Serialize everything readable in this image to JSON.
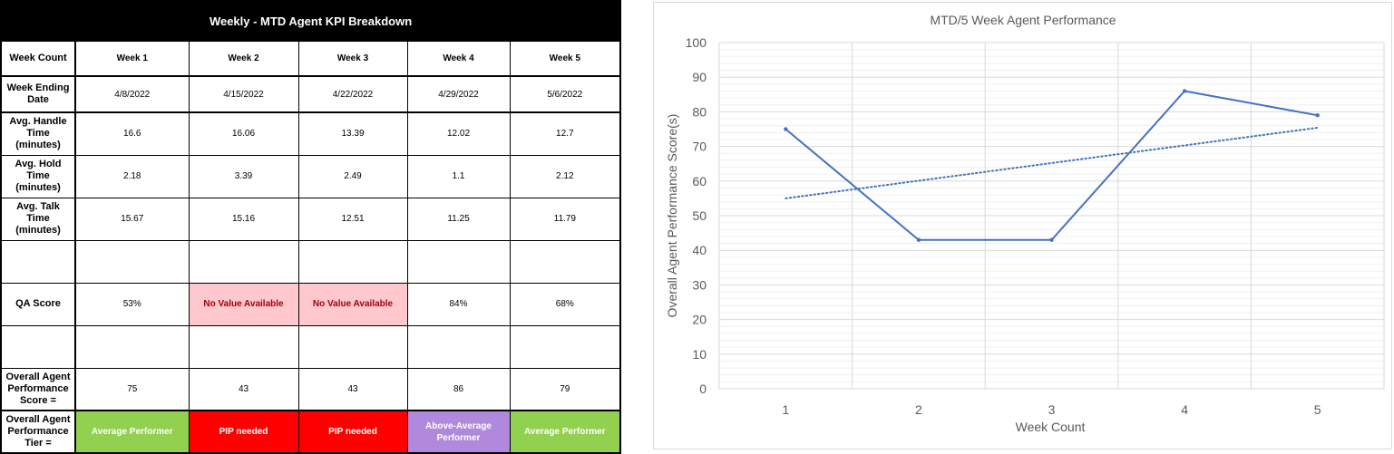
{
  "table": {
    "title": "Weekly - MTD Agent KPI Breakdown",
    "week_count_label": "Week Count",
    "weeks": [
      "Week 1",
      "Week 2",
      "Week 3",
      "Week 4",
      "Week 5"
    ],
    "rows": [
      {
        "label": "Week Ending Date",
        "values": [
          "4/8/2022",
          "4/15/2022",
          "4/22/2022",
          "4/29/2022",
          "5/6/2022"
        ]
      },
      {
        "label": "Avg. Handle Time (minutes)",
        "values": [
          "16.6",
          "16.06",
          "13.39",
          "12.02",
          "12.7"
        ]
      },
      {
        "label": "Avg. Hold Time (minutes)",
        "values": [
          "2.18",
          "3.39",
          "2.49",
          "1.1",
          "2.12"
        ]
      },
      {
        "label": "Avg. Talk Time (minutes)",
        "values": [
          "15.67",
          "15.16",
          "12.51",
          "11.25",
          "11.79"
        ]
      },
      {
        "label": "",
        "values": [
          "",
          "",
          "",
          "",
          ""
        ]
      },
      {
        "label": "QA Score",
        "values": [
          "53%",
          "No Value Available",
          "No Value Available",
          "84%",
          "68%"
        ]
      },
      {
        "label": "",
        "values": [
          "",
          "",
          "",
          "",
          ""
        ]
      },
      {
        "label": "Overall Agent Performance Score =",
        "values": [
          "75",
          "43",
          "43",
          "86",
          "79"
        ]
      }
    ],
    "tier": {
      "label": "Overall Agent Performance Tier =",
      "values": [
        "Average Performer",
        "PIP needed",
        "PIP needed",
        "Above-Average Performer",
        "Average Performer"
      ],
      "colors": [
        "#92d050",
        "#ff0000",
        "#ff0000",
        "#b088dc",
        "#92d050"
      ]
    },
    "na_color": "#ffc7ce"
  },
  "chart_data": {
    "type": "line",
    "title": "MTD/5 Week Agent Performance",
    "xlabel": "Week Count",
    "ylabel": "Overall Agent Performance Score(s)",
    "x": [
      1,
      2,
      3,
      4,
      5
    ],
    "categories": [
      "1",
      "2",
      "3",
      "4",
      "5"
    ],
    "series": [
      {
        "values": [
          75,
          43,
          43,
          86,
          79
        ],
        "color": "#4472c4"
      }
    ],
    "trendline": {
      "type": "linear",
      "style": "dotted",
      "color": "#4472c4"
    },
    "ylim": [
      0,
      100
    ],
    "yticks": [
      0,
      10,
      20,
      30,
      40,
      50,
      60,
      70,
      80,
      90,
      100
    ],
    "grid": true,
    "legend": false
  }
}
